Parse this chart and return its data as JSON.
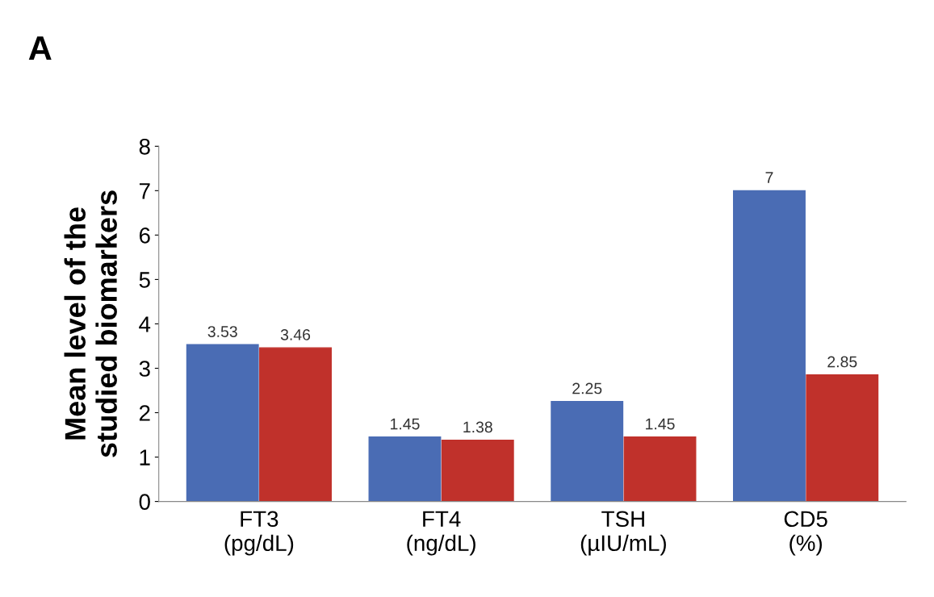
{
  "chart_data": {
    "type": "bar",
    "annotations": [
      "A"
    ],
    "ylabel": "Mean level of the\nstudied biomarkers",
    "categories": [
      "FT3\n(pg/dL)",
      "FT4\n(ng/dL)",
      "TSH\n(µIU/mL)",
      "CD5\n(%)"
    ],
    "series": [
      {
        "color": "#4a6cb4",
        "values": [
          3.53,
          1.45,
          2.25,
          7
        ]
      },
      {
        "color": "#c0312b",
        "values": [
          3.46,
          1.38,
          1.45,
          2.85
        ]
      }
    ],
    "ylim": [
      0,
      8
    ],
    "yticks": [
      0,
      1,
      2,
      3,
      4,
      5,
      6,
      7,
      8
    ],
    "data_labels": true,
    "grid": false,
    "legend": false
  }
}
